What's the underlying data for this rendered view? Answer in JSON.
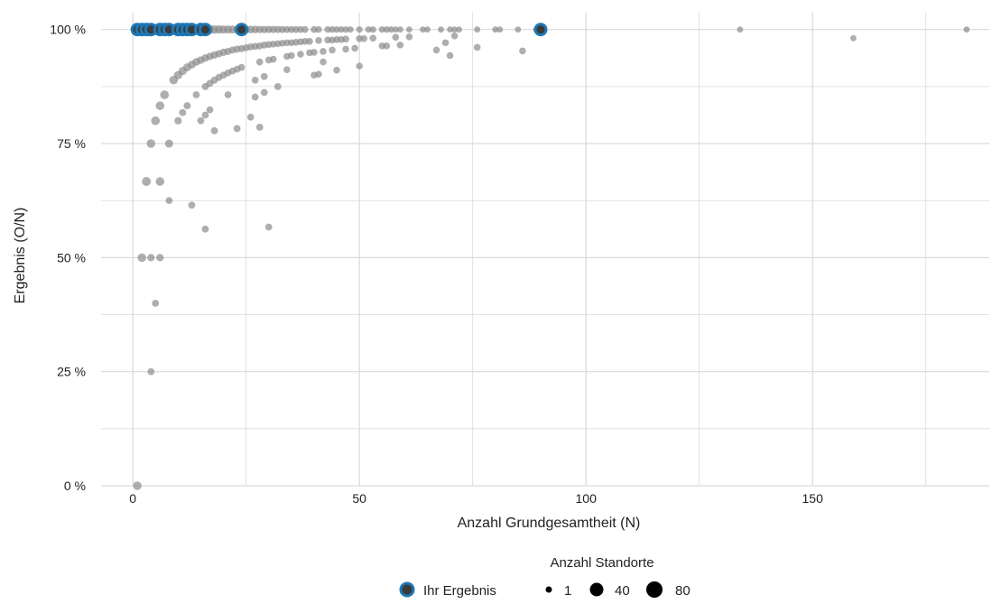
{
  "chart_data": {
    "type": "scatter",
    "xlabel": "Anzahl Grundgesamtheit (N)",
    "ylabel": "Ergebnis (O/N)",
    "xlim": [
      -7,
      189
    ],
    "ylim": [
      0,
      1.037
    ],
    "x_ticks": [
      0,
      50,
      100,
      150
    ],
    "x_tick_labels": [
      "0",
      "50",
      "100",
      "150"
    ],
    "y_ticks": [
      0,
      0.25,
      0.5,
      0.75,
      1.0
    ],
    "y_tick_labels": [
      "0 %",
      "25 %",
      "50 %",
      "75 %",
      "100 %"
    ],
    "grid": true,
    "legend": {
      "title": "Anzahl Standorte",
      "position": "bottom",
      "highlight_label": "Ihr Ergebnis",
      "size_labels": [
        "1",
        "40",
        "80"
      ],
      "size_values": [
        1,
        40,
        80
      ]
    },
    "colors": {
      "others": "#8c8c8c",
      "highlight_fill": "#3a3a3a",
      "highlight_ring": "#1f77b4",
      "grid": "#d9d9d9",
      "legend_dot": "#000000"
    },
    "series": [
      {
        "name": "Anzahl Standorte",
        "points": [
          {
            "x": 1,
            "y": 1.0,
            "n": 80
          },
          {
            "x": 2,
            "y": 1.0,
            "n": 80
          },
          {
            "x": 3,
            "y": 1.0,
            "n": 70
          },
          {
            "x": 4,
            "y": 1.0,
            "n": 65
          },
          {
            "x": 5,
            "y": 1.0,
            "n": 60
          },
          {
            "x": 6,
            "y": 1.0,
            "n": 55
          },
          {
            "x": 7,
            "y": 1.0,
            "n": 55
          },
          {
            "x": 8,
            "y": 1.0,
            "n": 50
          },
          {
            "x": 9,
            "y": 1.0,
            "n": 45
          },
          {
            "x": 10,
            "y": 1.0,
            "n": 45
          },
          {
            "x": 11,
            "y": 1.0,
            "n": 45
          },
          {
            "x": 12,
            "y": 1.0,
            "n": 40
          },
          {
            "x": 13,
            "y": 1.0,
            "n": 40
          },
          {
            "x": 14,
            "y": 1.0,
            "n": 35
          },
          {
            "x": 15,
            "y": 1.0,
            "n": 35
          },
          {
            "x": 16,
            "y": 1.0,
            "n": 30
          },
          {
            "x": 17,
            "y": 1.0,
            "n": 25
          },
          {
            "x": 18,
            "y": 1.0,
            "n": 20
          },
          {
            "x": 19,
            "y": 1.0,
            "n": 18
          },
          {
            "x": 20,
            "y": 1.0,
            "n": 16
          },
          {
            "x": 21,
            "y": 1.0,
            "n": 15
          },
          {
            "x": 22,
            "y": 1.0,
            "n": 14
          },
          {
            "x": 23,
            "y": 1.0,
            "n": 13
          },
          {
            "x": 24,
            "y": 1.0,
            "n": 12
          },
          {
            "x": 25,
            "y": 1.0,
            "n": 11
          },
          {
            "x": 26,
            "y": 1.0,
            "n": 10
          },
          {
            "x": 27,
            "y": 1.0,
            "n": 9
          },
          {
            "x": 28,
            "y": 1.0,
            "n": 8
          },
          {
            "x": 29,
            "y": 1.0,
            "n": 8
          },
          {
            "x": 30,
            "y": 1.0,
            "n": 7
          },
          {
            "x": 31,
            "y": 1.0,
            "n": 7
          },
          {
            "x": 32,
            "y": 1.0,
            "n": 6
          },
          {
            "x": 33,
            "y": 1.0,
            "n": 6
          },
          {
            "x": 34,
            "y": 1.0,
            "n": 5
          },
          {
            "x": 35,
            "y": 1.0,
            "n": 5
          },
          {
            "x": 36,
            "y": 1.0,
            "n": 5
          },
          {
            "x": 37,
            "y": 1.0,
            "n": 4
          },
          {
            "x": 38,
            "y": 1.0,
            "n": 4
          },
          {
            "x": 40,
            "y": 1.0,
            "n": 4
          },
          {
            "x": 41,
            "y": 1.0,
            "n": 3
          },
          {
            "x": 43,
            "y": 1.0,
            "n": 3
          },
          {
            "x": 44,
            "y": 1.0,
            "n": 3
          },
          {
            "x": 45,
            "y": 1.0,
            "n": 3
          },
          {
            "x": 46,
            "y": 1.0,
            "n": 2
          },
          {
            "x": 47,
            "y": 1.0,
            "n": 2
          },
          {
            "x": 48,
            "y": 1.0,
            "n": 2
          },
          {
            "x": 50,
            "y": 1.0,
            "n": 2
          },
          {
            "x": 52,
            "y": 1.0,
            "n": 2
          },
          {
            "x": 53,
            "y": 1.0,
            "n": 2
          },
          {
            "x": 55,
            "y": 1.0,
            "n": 2
          },
          {
            "x": 56,
            "y": 1.0,
            "n": 2
          },
          {
            "x": 57,
            "y": 1.0,
            "n": 2
          },
          {
            "x": 58,
            "y": 1.0,
            "n": 1
          },
          {
            "x": 59,
            "y": 1.0,
            "n": 1
          },
          {
            "x": 61,
            "y": 1.0,
            "n": 1
          },
          {
            "x": 64,
            "y": 1.0,
            "n": 1
          },
          {
            "x": 65,
            "y": 1.0,
            "n": 1
          },
          {
            "x": 68,
            "y": 1.0,
            "n": 1
          },
          {
            "x": 70,
            "y": 1.0,
            "n": 1
          },
          {
            "x": 71,
            "y": 1.0,
            "n": 1
          },
          {
            "x": 72,
            "y": 1.0,
            "n": 1
          },
          {
            "x": 76,
            "y": 1.0,
            "n": 1
          },
          {
            "x": 80,
            "y": 1.0,
            "n": 1
          },
          {
            "x": 81,
            "y": 1.0,
            "n": 1
          },
          {
            "x": 85,
            "y": 1.0,
            "n": 1
          },
          {
            "x": 89,
            "y": 1.0,
            "n": 1
          },
          {
            "x": 134,
            "y": 1.0,
            "n": 1
          },
          {
            "x": 184,
            "y": 1.0,
            "n": 1
          },
          {
            "x": 159,
            "y": 0.981,
            "n": 1
          },
          {
            "x": 0.99,
            "y": 0.0,
            "n": 20
          },
          {
            "x": 2,
            "y": 0.5,
            "n": 20
          },
          {
            "x": 4,
            "y": 0.5,
            "n": 8
          },
          {
            "x": 6,
            "y": 0.5,
            "n": 8
          },
          {
            "x": 4,
            "y": 0.25,
            "n": 5
          },
          {
            "x": 5,
            "y": 0.4,
            "n": 5
          },
          {
            "x": 3,
            "y": 0.667,
            "n": 25
          },
          {
            "x": 6,
            "y": 0.667,
            "n": 20
          },
          {
            "x": 4,
            "y": 0.75,
            "n": 20
          },
          {
            "x": 8,
            "y": 0.75,
            "n": 15
          },
          {
            "x": 5,
            "y": 0.8,
            "n": 22
          },
          {
            "x": 6,
            "y": 0.833,
            "n": 20
          },
          {
            "x": 7,
            "y": 0.857,
            "n": 22
          },
          {
            "x": 8,
            "y": 0.625,
            "n": 5
          },
          {
            "x": 13,
            "y": 0.615,
            "n": 5
          },
          {
            "x": 16,
            "y": 0.5625,
            "n": 5
          },
          {
            "x": 30,
            "y": 0.567,
            "n": 5
          },
          {
            "x": 9,
            "y": 0.889,
            "n": 20
          },
          {
            "x": 10,
            "y": 0.8,
            "n": 8
          },
          {
            "x": 11,
            "y": 0.818,
            "n": 6
          },
          {
            "x": 10,
            "y": 0.9,
            "n": 18
          },
          {
            "x": 11,
            "y": 0.909,
            "n": 16
          },
          {
            "x": 12,
            "y": 0.917,
            "n": 14
          },
          {
            "x": 12,
            "y": 0.833,
            "n": 6
          },
          {
            "x": 13,
            "y": 0.923,
            "n": 12
          },
          {
            "x": 14,
            "y": 0.929,
            "n": 11
          },
          {
            "x": 14,
            "y": 0.857,
            "n": 5
          },
          {
            "x": 15,
            "y": 0.933,
            "n": 10
          },
          {
            "x": 15,
            "y": 0.8,
            "n": 5
          },
          {
            "x": 16,
            "y": 0.9375,
            "n": 9
          },
          {
            "x": 16,
            "y": 0.875,
            "n": 6
          },
          {
            "x": 16,
            "y": 0.8125,
            "n": 5
          },
          {
            "x": 17,
            "y": 0.941,
            "n": 8
          },
          {
            "x": 17,
            "y": 0.882,
            "n": 6
          },
          {
            "x": 17,
            "y": 0.824,
            "n": 5
          },
          {
            "x": 18,
            "y": 0.944,
            "n": 8
          },
          {
            "x": 18,
            "y": 0.889,
            "n": 6
          },
          {
            "x": 18,
            "y": 0.778,
            "n": 6
          },
          {
            "x": 19,
            "y": 0.947,
            "n": 7
          },
          {
            "x": 19,
            "y": 0.895,
            "n": 5
          },
          {
            "x": 20,
            "y": 0.95,
            "n": 7
          },
          {
            "x": 20,
            "y": 0.9,
            "n": 5
          },
          {
            "x": 21,
            "y": 0.952,
            "n": 6
          },
          {
            "x": 21,
            "y": 0.905,
            "n": 5
          },
          {
            "x": 21,
            "y": 0.857,
            "n": 5
          },
          {
            "x": 22,
            "y": 0.955,
            "n": 6
          },
          {
            "x": 22,
            "y": 0.909,
            "n": 5
          },
          {
            "x": 23,
            "y": 0.957,
            "n": 6
          },
          {
            "x": 23,
            "y": 0.913,
            "n": 5
          },
          {
            "x": 23,
            "y": 0.783,
            "n": 5
          },
          {
            "x": 24,
            "y": 0.958,
            "n": 5
          },
          {
            "x": 24,
            "y": 0.917,
            "n": 5
          },
          {
            "x": 25,
            "y": 0.96,
            "n": 5
          },
          {
            "x": 26,
            "y": 0.962,
            "n": 5
          },
          {
            "x": 26,
            "y": 0.808,
            "n": 5
          },
          {
            "x": 27,
            "y": 0.963,
            "n": 5
          },
          {
            "x": 27,
            "y": 0.889,
            "n": 5
          },
          {
            "x": 27,
            "y": 0.852,
            "n": 5
          },
          {
            "x": 28,
            "y": 0.964,
            "n": 5
          },
          {
            "x": 28,
            "y": 0.929,
            "n": 5
          },
          {
            "x": 28,
            "y": 0.786,
            "n": 5
          },
          {
            "x": 29,
            "y": 0.966,
            "n": 5
          },
          {
            "x": 29,
            "y": 0.897,
            "n": 5
          },
          {
            "x": 29,
            "y": 0.862,
            "n": 5
          },
          {
            "x": 30,
            "y": 0.967,
            "n": 5
          },
          {
            "x": 30,
            "y": 0.933,
            "n": 5
          },
          {
            "x": 31,
            "y": 0.968,
            "n": 4
          },
          {
            "x": 31,
            "y": 0.935,
            "n": 4
          },
          {
            "x": 32,
            "y": 0.969,
            "n": 4
          },
          {
            "x": 32,
            "y": 0.875,
            "n": 5
          },
          {
            "x": 33,
            "y": 0.97,
            "n": 4
          },
          {
            "x": 34,
            "y": 0.971,
            "n": 4
          },
          {
            "x": 34,
            "y": 0.941,
            "n": 4
          },
          {
            "x": 34,
            "y": 0.912,
            "n": 4
          },
          {
            "x": 35,
            "y": 0.971,
            "n": 4
          },
          {
            "x": 35,
            "y": 0.943,
            "n": 4
          },
          {
            "x": 36,
            "y": 0.972,
            "n": 4
          },
          {
            "x": 37,
            "y": 0.973,
            "n": 4
          },
          {
            "x": 37,
            "y": 0.946,
            "n": 4
          },
          {
            "x": 38,
            "y": 0.974,
            "n": 4
          },
          {
            "x": 39,
            "y": 0.974,
            "n": 4
          },
          {
            "x": 39,
            "y": 0.949,
            "n": 4
          },
          {
            "x": 40,
            "y": 0.95,
            "n": 4
          },
          {
            "x": 40,
            "y": 0.9,
            "n": 4
          },
          {
            "x": 41,
            "y": 0.976,
            "n": 4
          },
          {
            "x": 41,
            "y": 0.902,
            "n": 4
          },
          {
            "x": 42,
            "y": 0.952,
            "n": 4
          },
          {
            "x": 42,
            "y": 0.929,
            "n": 4
          },
          {
            "x": 43,
            "y": 0.977,
            "n": 4
          },
          {
            "x": 44,
            "y": 0.977,
            "n": 4
          },
          {
            "x": 44,
            "y": 0.955,
            "n": 4
          },
          {
            "x": 45,
            "y": 0.978,
            "n": 4
          },
          {
            "x": 45,
            "y": 0.911,
            "n": 4
          },
          {
            "x": 46,
            "y": 0.978,
            "n": 4
          },
          {
            "x": 47,
            "y": 0.979,
            "n": 4
          },
          {
            "x": 47,
            "y": 0.957,
            "n": 4
          },
          {
            "x": 49,
            "y": 0.959,
            "n": 4
          },
          {
            "x": 50,
            "y": 0.98,
            "n": 4
          },
          {
            "x": 50,
            "y": 0.92,
            "n": 4
          },
          {
            "x": 51,
            "y": 0.98,
            "n": 4
          },
          {
            "x": 53,
            "y": 0.981,
            "n": 4
          },
          {
            "x": 55,
            "y": 0.964,
            "n": 4
          },
          {
            "x": 56,
            "y": 0.964,
            "n": 4
          },
          {
            "x": 58,
            "y": 0.983,
            "n": 4
          },
          {
            "x": 59,
            "y": 0.966,
            "n": 4
          },
          {
            "x": 61,
            "y": 0.984,
            "n": 4
          },
          {
            "x": 67,
            "y": 0.955,
            "n": 4
          },
          {
            "x": 69,
            "y": 0.971,
            "n": 4
          },
          {
            "x": 70,
            "y": 0.943,
            "n": 4
          },
          {
            "x": 71,
            "y": 0.986,
            "n": 4
          },
          {
            "x": 76,
            "y": 0.961,
            "n": 4
          },
          {
            "x": 86,
            "y": 0.953,
            "n": 4
          }
        ]
      },
      {
        "name": "Ihr Ergebnis",
        "points": [
          {
            "x": 1,
            "y": 1.0,
            "n": 80
          },
          {
            "x": 2,
            "y": 1.0,
            "n": 80
          },
          {
            "x": 3,
            "y": 1.0,
            "n": 80
          },
          {
            "x": 4,
            "y": 1.0,
            "n": 80
          },
          {
            "x": 6,
            "y": 1.0,
            "n": 80
          },
          {
            "x": 7,
            "y": 1.0,
            "n": 80
          },
          {
            "x": 8,
            "y": 1.0,
            "n": 80
          },
          {
            "x": 10,
            "y": 1.0,
            "n": 80
          },
          {
            "x": 11,
            "y": 1.0,
            "n": 80
          },
          {
            "x": 12,
            "y": 1.0,
            "n": 80
          },
          {
            "x": 13,
            "y": 1.0,
            "n": 80
          },
          {
            "x": 15,
            "y": 1.0,
            "n": 80
          },
          {
            "x": 16,
            "y": 1.0,
            "n": 80
          },
          {
            "x": 24,
            "y": 1.0,
            "n": 80
          },
          {
            "x": 90,
            "y": 1.0,
            "n": 80
          }
        ]
      }
    ]
  }
}
